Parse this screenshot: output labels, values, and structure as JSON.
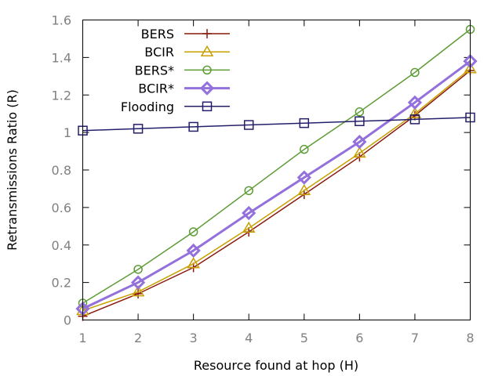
{
  "chart_data": {
    "type": "line",
    "title": "",
    "xlabel": "Resource found at hop (H)",
    "ylabel": "Retransmissions Ratio (R)",
    "xlim": [
      1,
      8
    ],
    "ylim": [
      0,
      1.6
    ],
    "x_ticks": [
      1,
      2,
      3,
      4,
      5,
      6,
      7,
      8
    ],
    "x_tick_labels": [
      "1",
      "2",
      "3",
      "4",
      "5",
      "6",
      "7",
      "8"
    ],
    "y_ticks": [
      0,
      0.2,
      0.4,
      0.6,
      0.8,
      1,
      1.2,
      1.4,
      1.6
    ],
    "y_tick_labels": [
      "0",
      "0.2",
      "0.4",
      "0.6",
      "0.8",
      "1",
      "1.2",
      "1.4",
      "1.6"
    ],
    "grid": false,
    "legend_position": "top-left",
    "x": [
      1,
      2,
      3,
      4,
      5,
      6,
      7,
      8
    ],
    "series": [
      {
        "name": "BERS",
        "color": "#8b1a0e",
        "marker": "plus",
        "values": [
          0.02,
          0.14,
          0.28,
          0.47,
          0.67,
          0.87,
          1.09,
          1.33
        ]
      },
      {
        "name": "BCIR",
        "color": "#c8a000",
        "marker": "triangle",
        "values": [
          0.05,
          0.15,
          0.3,
          0.49,
          0.69,
          0.89,
          1.1,
          1.34
        ]
      },
      {
        "name": "BERS*",
        "color": "#5e9c36",
        "marker": "circle",
        "values": [
          0.09,
          0.27,
          0.47,
          0.69,
          0.91,
          1.11,
          1.32,
          1.55
        ]
      },
      {
        "name": "BCIR*",
        "color": "#9370db",
        "marker": "diamond",
        "values": [
          0.06,
          0.2,
          0.37,
          0.57,
          0.76,
          0.95,
          1.16,
          1.38
        ]
      },
      {
        "name": "Flooding",
        "color": "#241f6b",
        "marker": "square",
        "values": [
          1.01,
          1.02,
          1.03,
          1.04,
          1.05,
          1.06,
          1.07,
          1.08
        ]
      }
    ]
  }
}
